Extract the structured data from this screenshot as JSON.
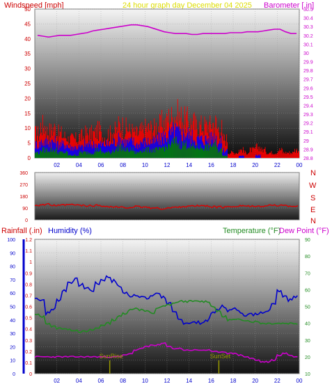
{
  "header": {
    "left": "Windspeed [mph]",
    "center": "24 hour graph day   December 04 2025",
    "right": "Barometer [.in]"
  },
  "colors": {
    "wind_gust": "#ff0000",
    "wind_avg": "#0000ff",
    "wind_low": "#008000",
    "barometer": "#cc00cc",
    "direction": "#dd0000",
    "humidity": "#0000cc",
    "temperature": "#228b22",
    "dewpoint": "#cc00cc",
    "rainfall": "#0000cc",
    "sun_marker": "#999900",
    "axis_left": "#cc0000",
    "axis_right": "#cc00cc",
    "header_center": "#dddd00"
  },
  "labels": {
    "rainfall": "Rainfall (.in)",
    "humidity": "Humidity (%)",
    "temperature": "Temperature (°F)",
    "dewpoint": "Dew Point (°F)",
    "sunrise": "SunRise",
    "sunset": "SunSet"
  },
  "compass": [
    "N",
    "W",
    "S",
    "E",
    "N"
  ],
  "chart_data": [
    {
      "type": "line",
      "series": [
        {
          "values": [
            9,
            12,
            10,
            11,
            9,
            8,
            7,
            7,
            8,
            9,
            9,
            10,
            8,
            9,
            10,
            12,
            11,
            10,
            9,
            10,
            11,
            11,
            12,
            13,
            15,
            16,
            15,
            14,
            13,
            12,
            12,
            12,
            13,
            11,
            7,
            2,
            2,
            3,
            2,
            3,
            4,
            3,
            2,
            2,
            3,
            2,
            2,
            3
          ]
        },
        {
          "values": [
            5,
            6,
            6,
            6,
            5,
            5,
            4,
            4,
            4,
            5,
            5,
            5,
            5,
            5,
            6,
            7,
            6,
            6,
            5,
            6,
            6,
            6,
            7,
            8,
            9,
            10,
            9,
            9,
            8,
            7,
            7,
            7,
            8,
            6,
            3,
            0,
            0,
            1,
            0,
            0,
            1,
            0,
            0,
            0,
            0,
            0,
            0,
            0
          ]
        },
        {
          "values": [
            2,
            3,
            3,
            3,
            2,
            2,
            1,
            1,
            2,
            2,
            2,
            3,
            2,
            2,
            3,
            4,
            3,
            3,
            2,
            3,
            3,
            3,
            3,
            4,
            5,
            6,
            5,
            5,
            4,
            4,
            4,
            4,
            5,
            3,
            1,
            0,
            0,
            0,
            0,
            0,
            0,
            0,
            0,
            0,
            0,
            0,
            0,
            0
          ]
        },
        {
          "values": [
            30.2,
            30.19,
            30.18,
            30.19,
            30.2,
            30.2,
            30.2,
            30.21,
            30.22,
            30.23,
            30.25,
            30.26,
            30.27,
            30.28,
            30.29,
            30.3,
            30.31,
            30.32,
            30.32,
            30.31,
            30.3,
            30.28,
            30.26,
            30.24,
            30.23,
            30.22,
            30.22,
            30.22,
            30.21,
            30.21,
            30.22,
            30.22,
            30.22,
            30.22,
            30.22,
            30.23,
            30.23,
            30.23,
            30.24,
            30.24,
            30.24,
            30.25,
            30.26,
            30.27,
            30.27,
            30.24,
            30.22,
            30.22
          ]
        }
      ],
      "x_ticks": [
        "02",
        "04",
        "06",
        "08",
        "10",
        "12",
        "14",
        "16",
        "18",
        "20",
        "22",
        "00"
      ],
      "y_left_ticks": [
        "0",
        "5",
        "10",
        "15",
        "20",
        "25",
        "30",
        "35",
        "40",
        "45",
        "50"
      ],
      "y_right_ticks": [
        "28.8",
        "28.9",
        "29",
        "29.1",
        "29.2",
        "29.3",
        "29.4",
        "29.5",
        "29.6",
        "29.7",
        "29.8",
        "29.9",
        "30",
        "30.1",
        "30.2",
        "30.3",
        "30.4",
        "30.5"
      ],
      "ylim": [
        0,
        50
      ],
      "y2lim": [
        28.8,
        30.5
      ]
    },
    {
      "type": "line",
      "series": [
        {
          "values": [
            112,
            115,
            118,
            110,
            108,
            112,
            115,
            113,
            110,
            105,
            108,
            110,
            106,
            100,
            98,
            95,
            92,
            96,
            100,
            98,
            95,
            90,
            88,
            85,
            90,
            95,
            100,
            102,
            104,
            106,
            108,
            104,
            100,
            98,
            96,
            100,
            104,
            108,
            106,
            102,
            100,
            104,
            108,
            112,
            110,
            108,
            106,
            105
          ]
        }
      ],
      "y_ticks": [
        "0",
        "90",
        "180",
        "270",
        "360"
      ],
      "ylim": [
        0,
        360
      ]
    },
    {
      "type": "line",
      "series": [
        {
          "values": [
            56,
            55,
            45,
            48,
            55,
            62,
            68,
            70,
            66,
            64,
            62,
            67,
            70,
            72,
            69,
            65,
            60,
            58,
            59,
            57,
            56,
            58,
            60,
            57,
            52,
            45,
            40,
            38,
            38,
            38,
            38,
            40,
            45,
            48,
            50,
            47,
            48,
            46,
            44,
            44,
            45,
            46,
            47,
            53,
            62,
            58,
            55,
            57
          ]
        },
        {
          "values": [
            45,
            44,
            40,
            38,
            37,
            37,
            36,
            36,
            35,
            35,
            36,
            37,
            39,
            40,
            42,
            44,
            46,
            48,
            49,
            48,
            47,
            46,
            49,
            50,
            51,
            52,
            53,
            53,
            53,
            53,
            53,
            53,
            50,
            47,
            44,
            42,
            42,
            42,
            42,
            41,
            41,
            40,
            40,
            40,
            40,
            40,
            40,
            40
          ]
        },
        {
          "values": [
            20,
            20,
            20,
            20,
            20,
            20,
            20,
            20,
            20,
            20,
            20,
            20,
            20,
            20,
            20,
            20,
            21,
            22,
            24,
            25,
            26,
            27,
            27,
            28,
            26,
            25,
            25,
            24,
            24,
            24,
            24,
            24,
            23,
            23,
            23,
            22,
            22,
            21,
            20,
            19,
            18,
            17,
            17,
            18,
            21,
            22,
            21,
            20
          ]
        },
        {
          "values": [
            0,
            0,
            0,
            0,
            0,
            0,
            0,
            0,
            0,
            0,
            0,
            0,
            0,
            0,
            0,
            0,
            0,
            0,
            0,
            0,
            0,
            0,
            0,
            0,
            0,
            0,
            0,
            0,
            0,
            0,
            0,
            0,
            0,
            0,
            0,
            0,
            0,
            0,
            0,
            0,
            0,
            0,
            0,
            0,
            0,
            0,
            0,
            0
          ]
        }
      ],
      "x_ticks": [
        "02",
        "04",
        "06",
        "08",
        "10",
        "12",
        "14",
        "16",
        "18",
        "20",
        "22",
        "00"
      ],
      "y_rain_ticks": [
        "0",
        "0.1",
        "0.2",
        "0.3",
        "0.4",
        "0.5",
        "0.6",
        "0.7",
        "0.8",
        "0.9",
        "1",
        "1.1",
        "1.2"
      ],
      "y_hum_ticks": [
        "0",
        "10",
        "20",
        "30",
        "40",
        "50",
        "60",
        "70",
        "80",
        "90",
        "100"
      ],
      "y_temp_ticks": [
        "10",
        "20",
        "30",
        "40",
        "50",
        "60",
        "70",
        "80",
        "90"
      ],
      "sun_events": [
        6.8,
        16.7
      ],
      "ylim": [
        0,
        100
      ],
      "y2lim": [
        10,
        90
      ]
    }
  ]
}
